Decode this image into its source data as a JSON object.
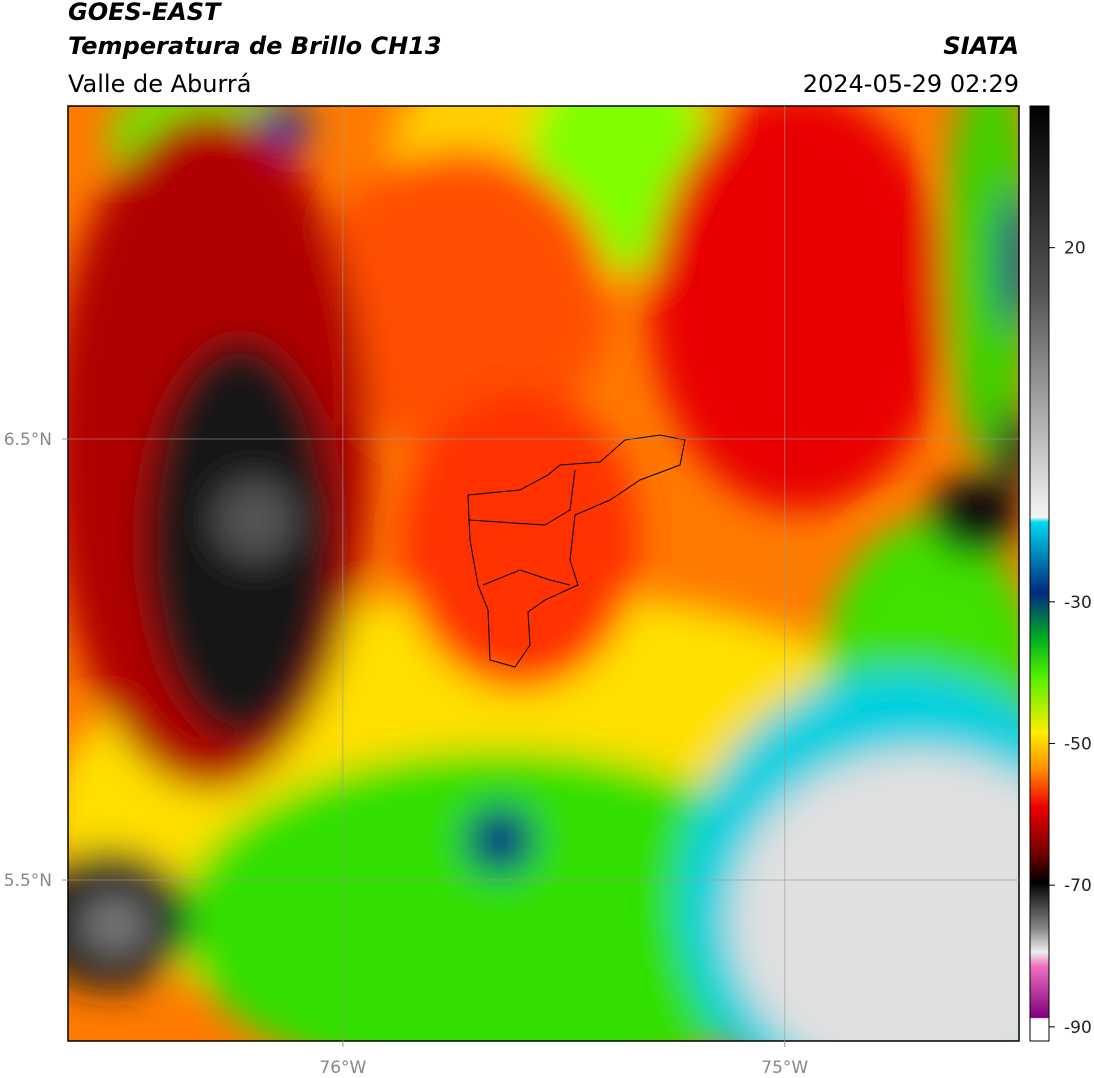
{
  "header": {
    "satellite": "GOES-EAST",
    "product": "Temperatura de Brillo CH13",
    "region": "Valle de Aburrá",
    "agency": "SIATA",
    "datetime": "2024-05-29 02:29"
  },
  "map": {
    "xlim": [
      -76.622,
      -74.47
    ],
    "ylim": [
      5.135,
      7.255
    ],
    "xticks": [
      {
        "value": -76,
        "label": "76°W"
      },
      {
        "value": -75,
        "label": "75°W"
      }
    ],
    "yticks": [
      {
        "value": 5.5,
        "label": "5.5°N"
      },
      {
        "value": 6.5,
        "label": "6.5°N"
      }
    ],
    "grid": true
  },
  "colorbar": {
    "clim": [
      -92,
      40
    ],
    "ticks": [
      -90,
      -70,
      -50,
      -30,
      20
    ]
  }
}
